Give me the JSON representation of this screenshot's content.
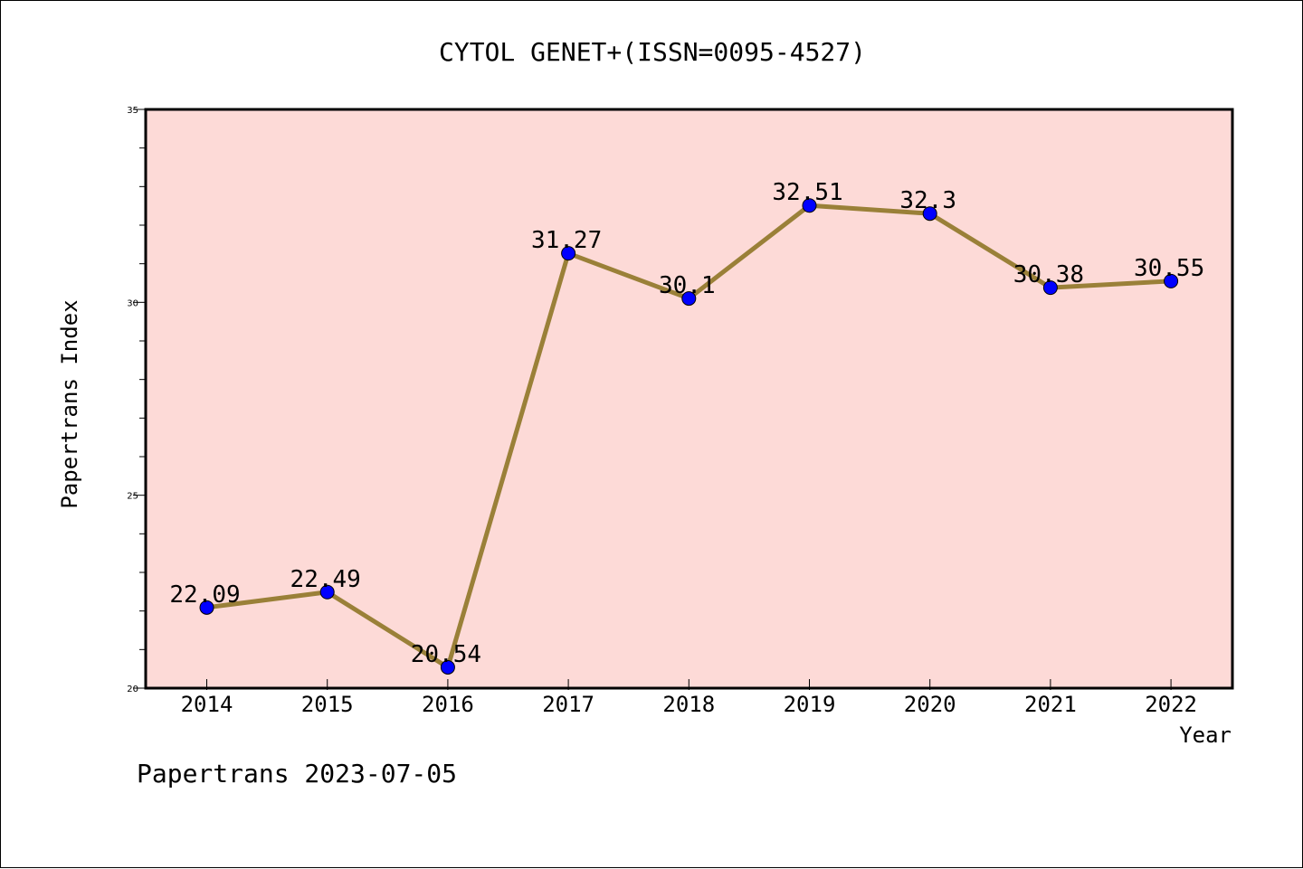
{
  "chart_data": {
    "type": "line",
    "title": "CYTOL GENET+(ISSN=0095-4527)",
    "xlabel": "Year",
    "ylabel": "Papertrans Index",
    "categories": [
      "2014",
      "2015",
      "2016",
      "2017",
      "2018",
      "2019",
      "2020",
      "2021",
      "2022"
    ],
    "series": [
      {
        "values": [
          22.09,
          22.49,
          20.54,
          31.27,
          30.1,
          32.51,
          32.3,
          30.38,
          30.55
        ],
        "labels": [
          "22.09",
          "22.49",
          "20.54",
          "31.27",
          "30.1",
          "32.51",
          "32.3",
          "30.38",
          "30.55"
        ]
      }
    ],
    "ylim": [
      20,
      35
    ],
    "yticks": [
      "20",
      "25",
      "30",
      "35"
    ],
    "grid": false,
    "colors": {
      "plot_background": "#fddad7",
      "line": "#9a8038",
      "marker": "#0000ff"
    }
  },
  "footer": {
    "watermark": "Papertrans 2023-07-05"
  }
}
